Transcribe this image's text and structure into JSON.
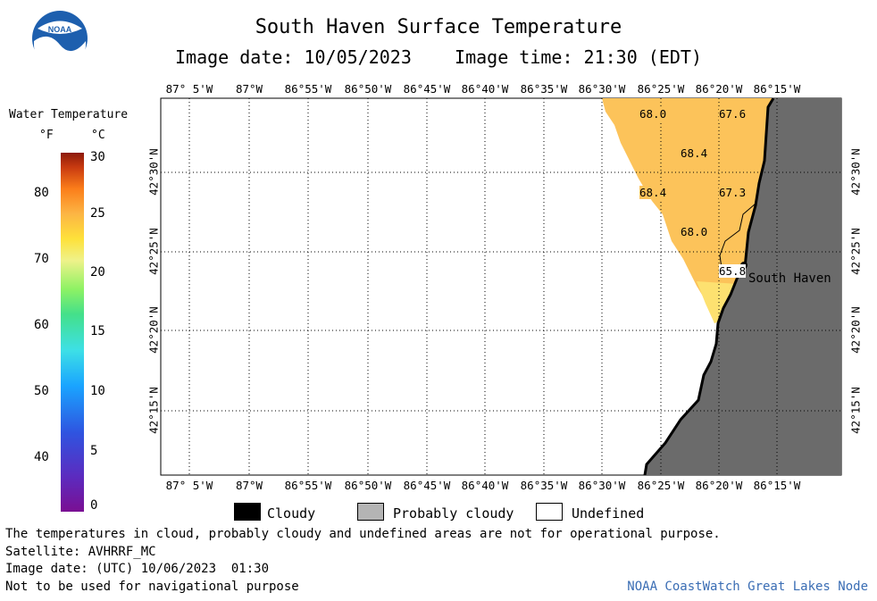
{
  "header": {
    "title": "South Haven Surface Temperature",
    "subtitle": "Image date: 10/05/2023    Image time: 21:30 (EDT)"
  },
  "logo": {
    "text": "NOAA"
  },
  "map": {
    "lon_labels": [
      "87° 5'W",
      "87°W",
      "86°55'W",
      "86°50'W",
      "86°45'W",
      "86°40'W",
      "86°35'W",
      "86°30'W",
      "86°25'W",
      "86°20'W",
      "86°15'W"
    ],
    "lat_labels": [
      "42°30'N",
      "42°25'N",
      "42°20'N",
      "42°15'N"
    ],
    "temperatures": [
      {
        "value": "68.0"
      },
      {
        "value": "67.6"
      },
      {
        "value": "68.4"
      },
      {
        "value": "68.4"
      },
      {
        "value": "67.3"
      },
      {
        "value": "68.0"
      },
      {
        "value": "65.8"
      }
    ],
    "place_label": "South Haven",
    "colors": {
      "land": "#6b6b6b",
      "water_warm": "#fcc35a",
      "water_cool": "#fde170"
    }
  },
  "colorbar": {
    "title": "Water Temperature",
    "unit_f": "°F",
    "unit_c": "°C",
    "f_ticks": [
      "80",
      "70",
      "60",
      "50",
      "40"
    ],
    "c_ticks": [
      "30",
      "25",
      "20",
      "15",
      "10",
      "5",
      "0"
    ]
  },
  "legend": {
    "items": [
      {
        "label": "Cloudy",
        "color": "#000000"
      },
      {
        "label": "Probably cloudy",
        "color": "#b4b4b4"
      },
      {
        "label": "Undefined",
        "color": "#ffffff"
      }
    ]
  },
  "notes": [
    "The temperatures in cloud, probably cloudy and undefined areas are not for operational purpose.",
    "Satellite: AVHRRF_MC",
    "Image date: (UTC) 10/06/2023  01:30",
    "Not to be used for navigational purpose"
  ],
  "credit": "NOAA CoastWatch Great Lakes Node"
}
